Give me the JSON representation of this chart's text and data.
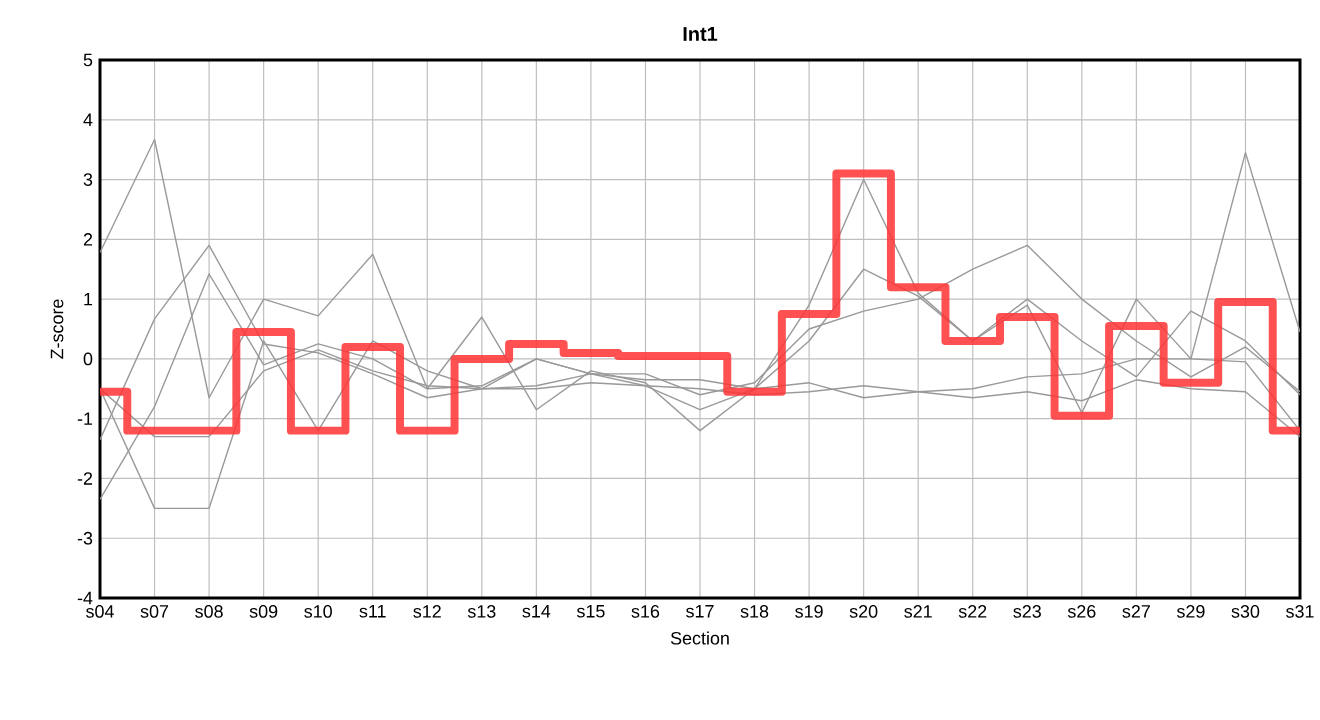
{
  "chart_data": {
    "type": "line",
    "title": "Int1",
    "xlabel": "Section",
    "ylabel": "Z-score",
    "categories": [
      "s04",
      "s07",
      "s08",
      "s09",
      "s10",
      "s11",
      "s12",
      "s13",
      "s14",
      "s15",
      "s16",
      "s17",
      "s18",
      "s19",
      "s20",
      "s21",
      "s22",
      "s23",
      "s26",
      "s27",
      "s29",
      "s30",
      "s31"
    ],
    "ylim": [
      -4,
      5
    ],
    "yticks": [
      -4,
      -3,
      -2,
      -1,
      0,
      1,
      2,
      3,
      4,
      5
    ],
    "grid": true,
    "marker": "none",
    "series": [
      {
        "color": "#999999",
        "values": [
          1.78,
          3.67,
          -0.65,
          1.0,
          0.72,
          1.75,
          -0.5,
          0.7,
          -0.85,
          -0.2,
          -0.4,
          -1.2,
          -0.5,
          0.9,
          3.0,
          1.1,
          0.3,
          0.9,
          -0.9,
          1.0,
          0.0,
          3.45,
          0.45
        ]
      },
      {
        "color": "#999999",
        "values": [
          -0.5,
          -2.5,
          -2.5,
          0.3,
          -1.2,
          0.3,
          -0.2,
          -0.5,
          0.0,
          -0.25,
          -0.45,
          -0.85,
          -0.5,
          0.3,
          1.5,
          1.05,
          0.3,
          1.0,
          0.3,
          -0.3,
          0.8,
          0.3,
          -0.6
        ]
      },
      {
        "color": "#999999",
        "values": [
          -2.35,
          -0.8,
          1.42,
          -0.1,
          0.25,
          0.0,
          -0.5,
          -0.45,
          0.0,
          -0.25,
          -0.25,
          -0.6,
          -0.4,
          0.5,
          0.8,
          1.0,
          1.5,
          1.9,
          1.0,
          0.3,
          -0.3,
          0.2,
          -0.55
        ]
      },
      {
        "color": "#999999",
        "values": [
          -1.35,
          0.67,
          1.9,
          0.25,
          0.1,
          -0.25,
          -0.65,
          -0.5,
          -0.45,
          -0.25,
          -0.35,
          -0.35,
          -0.5,
          -0.4,
          -0.65,
          -0.55,
          -0.5,
          -0.3,
          -0.25,
          0.0,
          0.0,
          -0.05,
          -1.2
        ]
      },
      {
        "color": "#999999",
        "values": [
          -0.5,
          -1.3,
          -1.3,
          -0.2,
          0.15,
          -0.2,
          -0.45,
          -0.5,
          -0.5,
          -0.4,
          -0.45,
          -0.5,
          -0.6,
          -0.55,
          -0.45,
          -0.55,
          -0.65,
          -0.55,
          -0.7,
          -0.35,
          -0.5,
          -0.55,
          -1.3
        ]
      },
      {
        "type": "step",
        "color": "#ff3333",
        "values": [
          -0.55,
          -1.2,
          -1.2,
          0.45,
          -1.2,
          0.2,
          -1.2,
          0.0,
          0.25,
          0.1,
          0.05,
          0.05,
          -0.55,
          0.75,
          3.1,
          1.2,
          0.3,
          0.7,
          -0.95,
          0.55,
          -0.4,
          0.95,
          -1.2
        ]
      }
    ]
  }
}
